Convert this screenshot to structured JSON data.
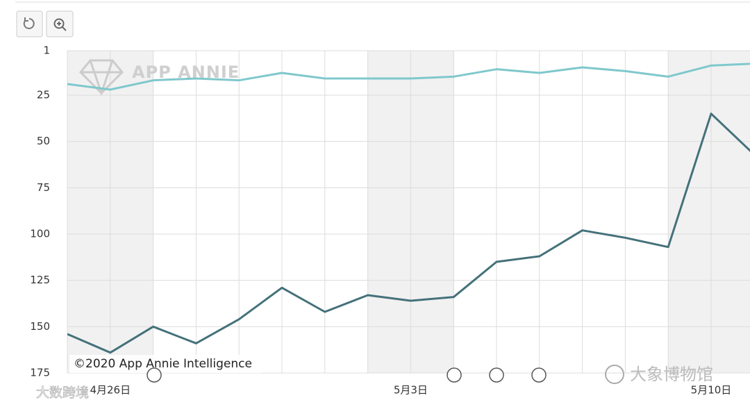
{
  "chart_data": {
    "type": "line",
    "categories": [
      null,
      "4月26日",
      null,
      null,
      null,
      null,
      null,
      null,
      "5月3日",
      null,
      null,
      null,
      null,
      null,
      null,
      "5月10日",
      null
    ],
    "series": [
      {
        "color": "#7fc8cc",
        "values": [
          19,
          22,
          17,
          16,
          17,
          13,
          16,
          16,
          16,
          15,
          11,
          13,
          10,
          12,
          15,
          9,
          8
        ]
      },
      {
        "color": "#44717a",
        "values": [
          154,
          164,
          150,
          159,
          146,
          129,
          142,
          133,
          136,
          134,
          115,
          112,
          98,
          102,
          107,
          35,
          57
        ]
      }
    ],
    "ylim": [
      1,
      175
    ],
    "inverted": true,
    "yticks": [
      1,
      25,
      50,
      75,
      100,
      125,
      150,
      175
    ],
    "grid": true
  },
  "watermarks": {
    "brand": "APP ANNIE",
    "copyright": "©2020 App Annie Intelligence",
    "wechat": "大象博物馆",
    "source": "大数跨境"
  }
}
